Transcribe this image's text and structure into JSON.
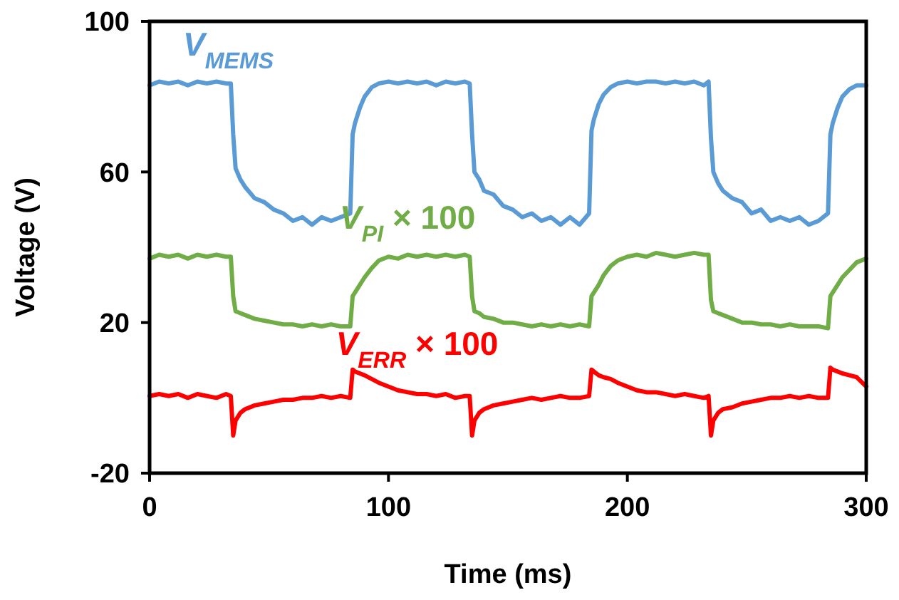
{
  "chart_data": {
    "type": "line",
    "xlabel": "Time (ms)",
    "ylabel": "Voltage (V)",
    "xlim": [
      0,
      300
    ],
    "xticks": [
      0,
      100,
      200,
      300
    ],
    "ylim": [
      -20,
      100
    ],
    "yticks": [
      -20,
      20,
      60,
      100
    ],
    "grid": false,
    "marker": "none",
    "line_style": "solid",
    "x": [
      0,
      4,
      8,
      12,
      16,
      20,
      24,
      28,
      32,
      34,
      35,
      36,
      38,
      40,
      44,
      48,
      52,
      56,
      60,
      64,
      68,
      72,
      76,
      80,
      84,
      85,
      86,
      88,
      90,
      93,
      96,
      100,
      104,
      108,
      112,
      116,
      120,
      124,
      128,
      132,
      134,
      135,
      136,
      138,
      140,
      144,
      148,
      152,
      156,
      160,
      164,
      168,
      172,
      176,
      180,
      184,
      185,
      186,
      188,
      190,
      193,
      196,
      200,
      204,
      208,
      212,
      216,
      220,
      224,
      228,
      232,
      234,
      235,
      236,
      238,
      240,
      244,
      248,
      252,
      256,
      260,
      264,
      268,
      272,
      276,
      280,
      284,
      285,
      286,
      288,
      290,
      293,
      296,
      300
    ],
    "series": [
      {
        "name": "V$_{MEMS}$",
        "color": "#5b9bd5",
        "values": [
          83,
          84,
          83.5,
          84,
          83,
          84,
          83.5,
          84,
          83.5,
          83.5,
          70,
          61,
          58,
          56,
          53,
          52,
          50,
          49,
          47,
          48,
          46,
          48,
          47,
          48,
          49,
          70,
          73,
          77,
          80,
          82.5,
          83.5,
          84,
          83.5,
          84,
          83.5,
          84,
          83,
          84,
          83.5,
          84,
          83.5,
          70,
          60,
          58,
          55,
          54,
          51,
          50,
          48,
          49,
          47,
          48,
          46,
          48,
          46,
          49,
          71,
          74,
          78,
          80.5,
          82.5,
          83.5,
          84,
          83.5,
          84,
          84,
          83.5,
          84,
          83.5,
          84,
          83,
          84,
          69,
          60,
          57,
          55,
          53,
          52,
          49,
          50,
          47,
          48,
          47,
          48,
          46,
          47,
          49,
          70,
          73,
          77,
          80,
          82,
          83,
          83
        ]
      },
      {
        "name": "V$_{PI}$ × 100",
        "color": "#70ad47",
        "values": [
          37,
          38,
          37.5,
          38,
          37,
          38,
          37.5,
          38,
          37.5,
          37.5,
          27,
          23,
          22.5,
          22,
          21,
          20.5,
          20,
          19.5,
          19.5,
          19,
          19.5,
          19,
          19.5,
          19,
          19,
          27,
          28,
          30,
          32,
          34.5,
          36.5,
          37.5,
          37,
          38,
          37.5,
          38,
          37.5,
          38,
          37.5,
          38,
          37.5,
          27,
          23,
          22.5,
          21.5,
          21,
          20,
          20,
          19.5,
          19,
          19.5,
          19,
          19.5,
          19,
          19.5,
          19,
          27,
          28,
          30,
          32.5,
          35,
          36.5,
          37.5,
          38,
          37.5,
          38.5,
          38,
          37.5,
          38,
          38.5,
          38,
          38,
          26,
          23,
          22.5,
          22,
          21,
          20,
          20,
          19.5,
          19.5,
          19,
          19.5,
          19,
          19,
          19,
          18.5,
          27,
          28,
          30,
          32,
          34,
          36,
          37
        ]
      },
      {
        "name": "V$_{ERR}$ × 100",
        "color": "#ff0000",
        "values": [
          0.5,
          1,
          0.5,
          1,
          0,
          1,
          0.5,
          0,
          1,
          0.5,
          -10,
          -6,
          -4,
          -3,
          -2,
          -1.5,
          -1,
          -0.5,
          -0.5,
          0,
          0,
          0.5,
          0,
          0.5,
          0,
          7.5,
          7,
          6.5,
          6,
          5,
          4,
          3,
          2,
          1.5,
          1,
          1,
          0.5,
          1,
          0,
          0.5,
          0.5,
          -10,
          -6,
          -4,
          -3,
          -2,
          -1.5,
          -1,
          -0.5,
          0,
          -0.5,
          0,
          0.5,
          0,
          0,
          0.5,
          7.5,
          7,
          6,
          5.5,
          5,
          4,
          3,
          2,
          1.5,
          1.5,
          1,
          0.5,
          1,
          0.5,
          0,
          0.5,
          -10,
          -6,
          -4,
          -3,
          -2.5,
          -1.5,
          -1,
          -0.5,
          0,
          0,
          0.5,
          0,
          0.5,
          0,
          0,
          8,
          7.5,
          7,
          6.5,
          6,
          5.5,
          3
        ]
      }
    ]
  }
}
